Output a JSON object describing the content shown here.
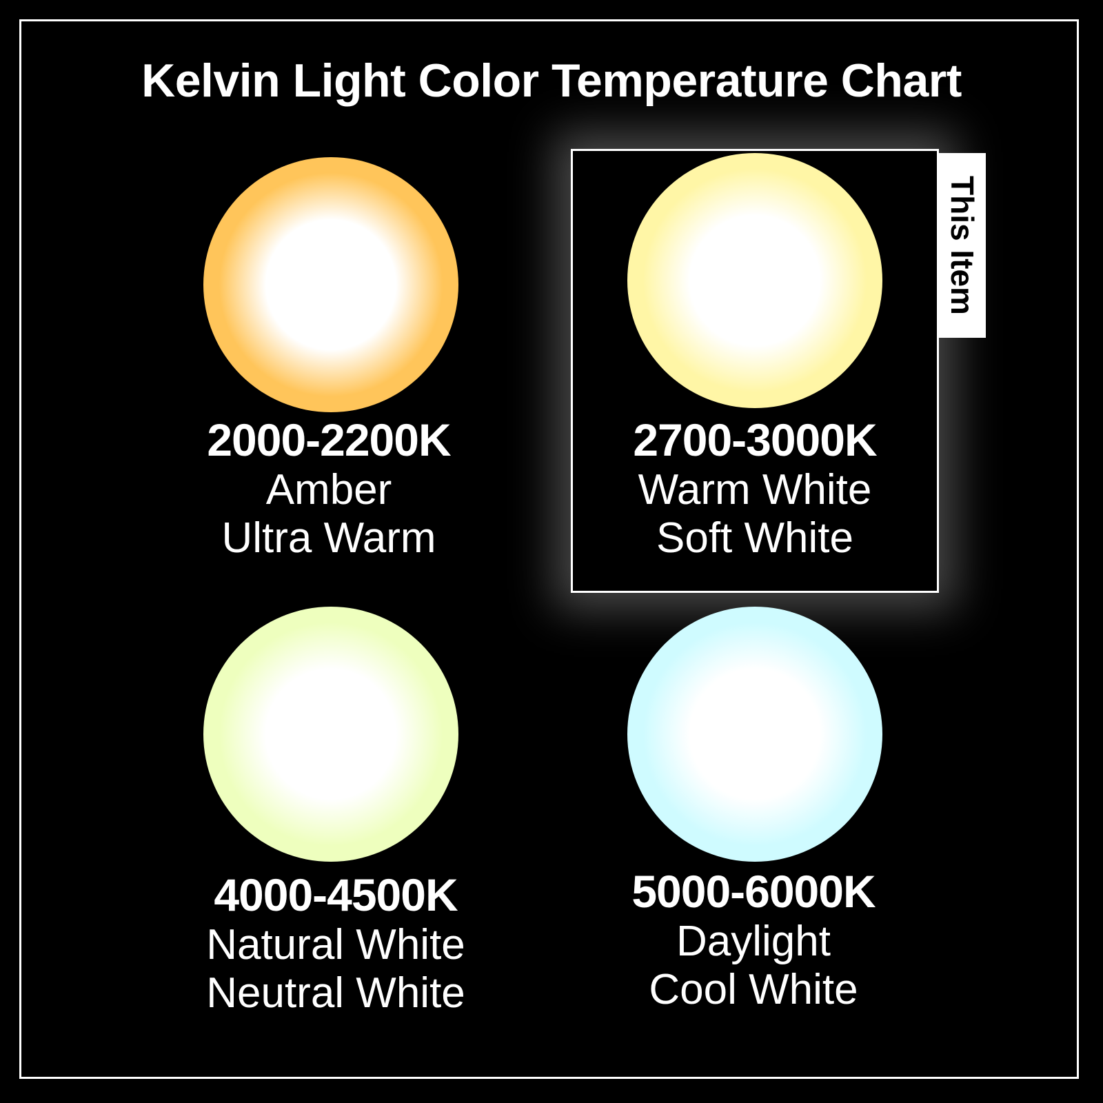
{
  "title": "Kelvin Light Color Temperature Chart",
  "highlight_tag": "This Item",
  "items": [
    {
      "range": "2000-2200K",
      "names": [
        "Amber",
        "Ultra Warm"
      ],
      "color": "#ffc55a",
      "highlighted": false
    },
    {
      "range": "2700-3000K",
      "names": [
        "Warm White",
        "Soft White"
      ],
      "color": "#fff6a6",
      "highlighted": true
    },
    {
      "range": "4000-4500K",
      "names": [
        "Natural White",
        "Neutral White"
      ],
      "color": "#eeffbe",
      "highlighted": false
    },
    {
      "range": "5000-6000K",
      "names": [
        "Daylight",
        "Cool White"
      ],
      "color": "#cffbff",
      "highlighted": false
    }
  ]
}
